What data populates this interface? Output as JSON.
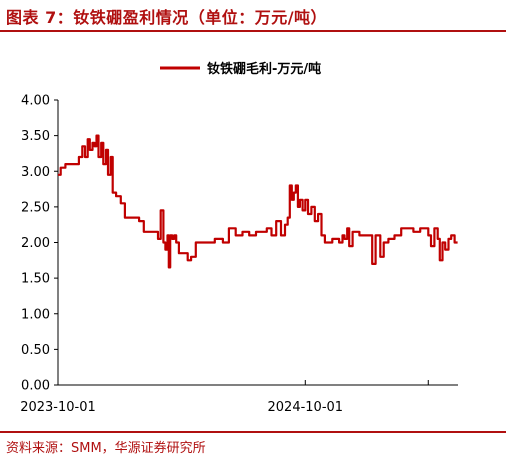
{
  "title": "图表 7：钕铁硼盈利情况（单位：万元/吨）",
  "source": "资料来源：SMM，华源证券研究所",
  "chart_data": {
    "type": "line",
    "xlabel": "",
    "ylabel": "",
    "ylim": [
      0,
      4
    ],
    "yticks": [
      "4.00",
      "3.50",
      "3.00",
      "2.50",
      "2.00",
      "1.50",
      "1.00",
      "0.50",
      "0.00"
    ],
    "xtick_labels": [
      "2023-10-01",
      "2024-10-01"
    ],
    "xlim": [
      "2023-10-01",
      "2025-05-15"
    ],
    "grid": false,
    "legend_position": "top-center",
    "line_color": "#c00000",
    "series": [
      {
        "name": "钕铁硼毛利-万元/吨",
        "x": [
          "2023-10-01",
          "2023-10-05",
          "2023-10-12",
          "2023-10-20",
          "2023-11-01",
          "2023-11-06",
          "2023-11-10",
          "2023-11-14",
          "2023-11-17",
          "2023-11-21",
          "2023-11-24",
          "2023-11-27",
          "2023-11-30",
          "2023-12-04",
          "2023-12-07",
          "2023-12-11",
          "2023-12-14",
          "2023-12-18",
          "2023-12-21",
          "2023-12-26",
          "2024-01-02",
          "2024-01-08",
          "2024-01-15",
          "2024-01-22",
          "2024-01-29",
          "2024-02-05",
          "2024-02-12",
          "2024-02-19",
          "2024-02-26",
          "2024-03-01",
          "2024-03-05",
          "2024-03-08",
          "2024-03-11",
          "2024-03-13",
          "2024-03-15",
          "2024-03-18",
          "2024-03-21",
          "2024-03-24",
          "2024-03-28",
          "2024-04-10",
          "2024-04-15",
          "2024-04-22",
          "2024-05-01",
          "2024-05-10",
          "2024-05-20",
          "2024-06-01",
          "2024-06-10",
          "2024-06-20",
          "2024-06-30",
          "2024-07-10",
          "2024-07-20",
          "2024-07-30",
          "2024-08-05",
          "2024-08-12",
          "2024-08-19",
          "2024-08-26",
          "2024-09-01",
          "2024-09-05",
          "2024-09-08",
          "2024-09-11",
          "2024-09-14",
          "2024-09-17",
          "2024-09-20",
          "2024-09-23",
          "2024-09-27",
          "2024-10-01",
          "2024-10-05",
          "2024-10-10",
          "2024-10-15",
          "2024-10-20",
          "2024-10-25",
          "2024-10-30",
          "2024-11-05",
          "2024-11-10",
          "2024-11-20",
          "2024-11-25",
          "2024-11-28",
          "2024-12-02",
          "2024-12-05",
          "2024-12-10",
          "2024-12-20",
          "2025-01-01",
          "2025-01-08",
          "2025-01-13",
          "2025-01-20",
          "2025-01-25",
          "2025-02-01",
          "2025-02-10",
          "2025-02-20",
          "2025-03-01",
          "2025-03-10",
          "2025-03-20",
          "2025-04-01",
          "2025-04-05",
          "2025-04-10",
          "2025-04-15",
          "2025-04-18",
          "2025-04-22",
          "2025-04-26",
          "2025-05-01",
          "2025-05-05",
          "2025-05-10"
        ],
        "values": [
          2.95,
          3.05,
          3.1,
          3.1,
          3.2,
          3.35,
          3.2,
          3.45,
          3.3,
          3.4,
          3.35,
          3.5,
          3.2,
          3.4,
          3.1,
          3.3,
          2.95,
          3.2,
          2.7,
          2.65,
          2.55,
          2.35,
          2.35,
          2.35,
          2.3,
          2.15,
          2.15,
          2.15,
          2.05,
          2.45,
          2.0,
          1.9,
          2.1,
          1.65,
          2.1,
          2.05,
          2.1,
          2.0,
          1.85,
          1.75,
          1.8,
          2.0,
          2.0,
          2.0,
          2.05,
          2.0,
          2.2,
          2.1,
          2.15,
          2.1,
          2.15,
          2.15,
          2.2,
          2.1,
          2.3,
          2.1,
          2.25,
          2.35,
          2.8,
          2.6,
          2.7,
          2.8,
          2.5,
          2.6,
          2.45,
          2.6,
          2.4,
          2.5,
          2.3,
          2.4,
          2.1,
          2.0,
          2.0,
          2.05,
          2.0,
          2.1,
          2.05,
          2.2,
          1.95,
          2.15,
          2.1,
          2.1,
          1.7,
          2.1,
          1.8,
          2.0,
          2.05,
          2.1,
          2.2,
          2.2,
          2.15,
          2.2,
          2.1,
          1.95,
          2.2,
          2.05,
          1.75,
          2.0,
          1.9,
          2.05,
          2.1,
          2.0
        ]
      }
    ]
  }
}
